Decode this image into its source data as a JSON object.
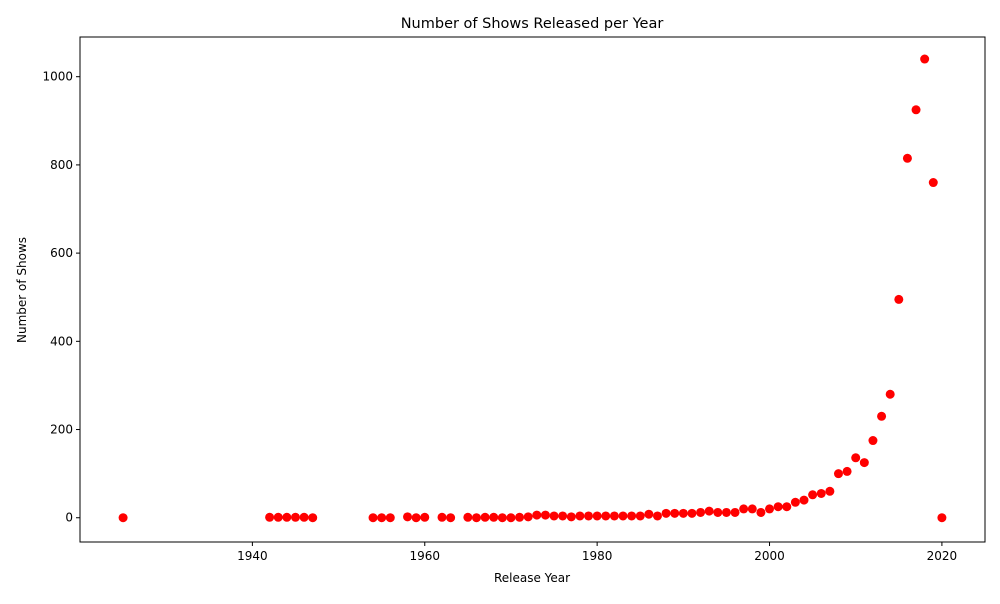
{
  "chart_data": {
    "type": "scatter",
    "title": "Number of Shows Released per Year",
    "xlabel": "Release Year",
    "ylabel": "Number of Shows",
    "xlim": [
      1920,
      2025
    ],
    "ylim": [
      -55,
      1090
    ],
    "xticks": [
      1940,
      1960,
      1980,
      2000,
      2020
    ],
    "yticks": [
      0,
      200,
      400,
      600,
      800,
      1000
    ],
    "grid": false,
    "legend": "none",
    "marker_color": "#ff0000",
    "series": [
      {
        "points": [
          [
            1925,
            0
          ],
          [
            1942,
            1
          ],
          [
            1943,
            1
          ],
          [
            1944,
            1
          ],
          [
            1945,
            1
          ],
          [
            1946,
            1
          ],
          [
            1947,
            0
          ],
          [
            1954,
            0
          ],
          [
            1955,
            0
          ],
          [
            1956,
            0
          ],
          [
            1958,
            2
          ],
          [
            1959,
            0
          ],
          [
            1960,
            1
          ],
          [
            1962,
            1
          ],
          [
            1963,
            0
          ],
          [
            1965,
            1
          ],
          [
            1966,
            0
          ],
          [
            1967,
            1
          ],
          [
            1968,
            1
          ],
          [
            1969,
            0
          ],
          [
            1970,
            0
          ],
          [
            1971,
            1
          ],
          [
            1972,
            2
          ],
          [
            1973,
            6
          ],
          [
            1974,
            6
          ],
          [
            1975,
            4
          ],
          [
            1976,
            4
          ],
          [
            1977,
            2
          ],
          [
            1978,
            4
          ],
          [
            1979,
            4
          ],
          [
            1980,
            4
          ],
          [
            1981,
            4
          ],
          [
            1982,
            4
          ],
          [
            1983,
            4
          ],
          [
            1984,
            4
          ],
          [
            1985,
            4
          ],
          [
            1986,
            8
          ],
          [
            1987,
            4
          ],
          [
            1988,
            10
          ],
          [
            1989,
            10
          ],
          [
            1990,
            10
          ],
          [
            1991,
            10
          ],
          [
            1992,
            12
          ],
          [
            1993,
            15
          ],
          [
            1994,
            12
          ],
          [
            1995,
            12
          ],
          [
            1996,
            12
          ],
          [
            1997,
            20
          ],
          [
            1998,
            20
          ],
          [
            1999,
            12
          ],
          [
            2000,
            20
          ],
          [
            2001,
            25
          ],
          [
            2002,
            25
          ],
          [
            2003,
            35
          ],
          [
            2004,
            40
          ],
          [
            2005,
            52
          ],
          [
            2006,
            55
          ],
          [
            2007,
            60
          ],
          [
            2008,
            100
          ],
          [
            2009,
            105
          ],
          [
            2010,
            136
          ],
          [
            2011,
            125
          ],
          [
            2012,
            175
          ],
          [
            2013,
            230
          ],
          [
            2014,
            280
          ],
          [
            2015,
            495
          ],
          [
            2016,
            815
          ],
          [
            2017,
            925
          ],
          [
            2018,
            1040
          ],
          [
            2019,
            760
          ],
          [
            2020,
            0
          ]
        ]
      }
    ]
  }
}
